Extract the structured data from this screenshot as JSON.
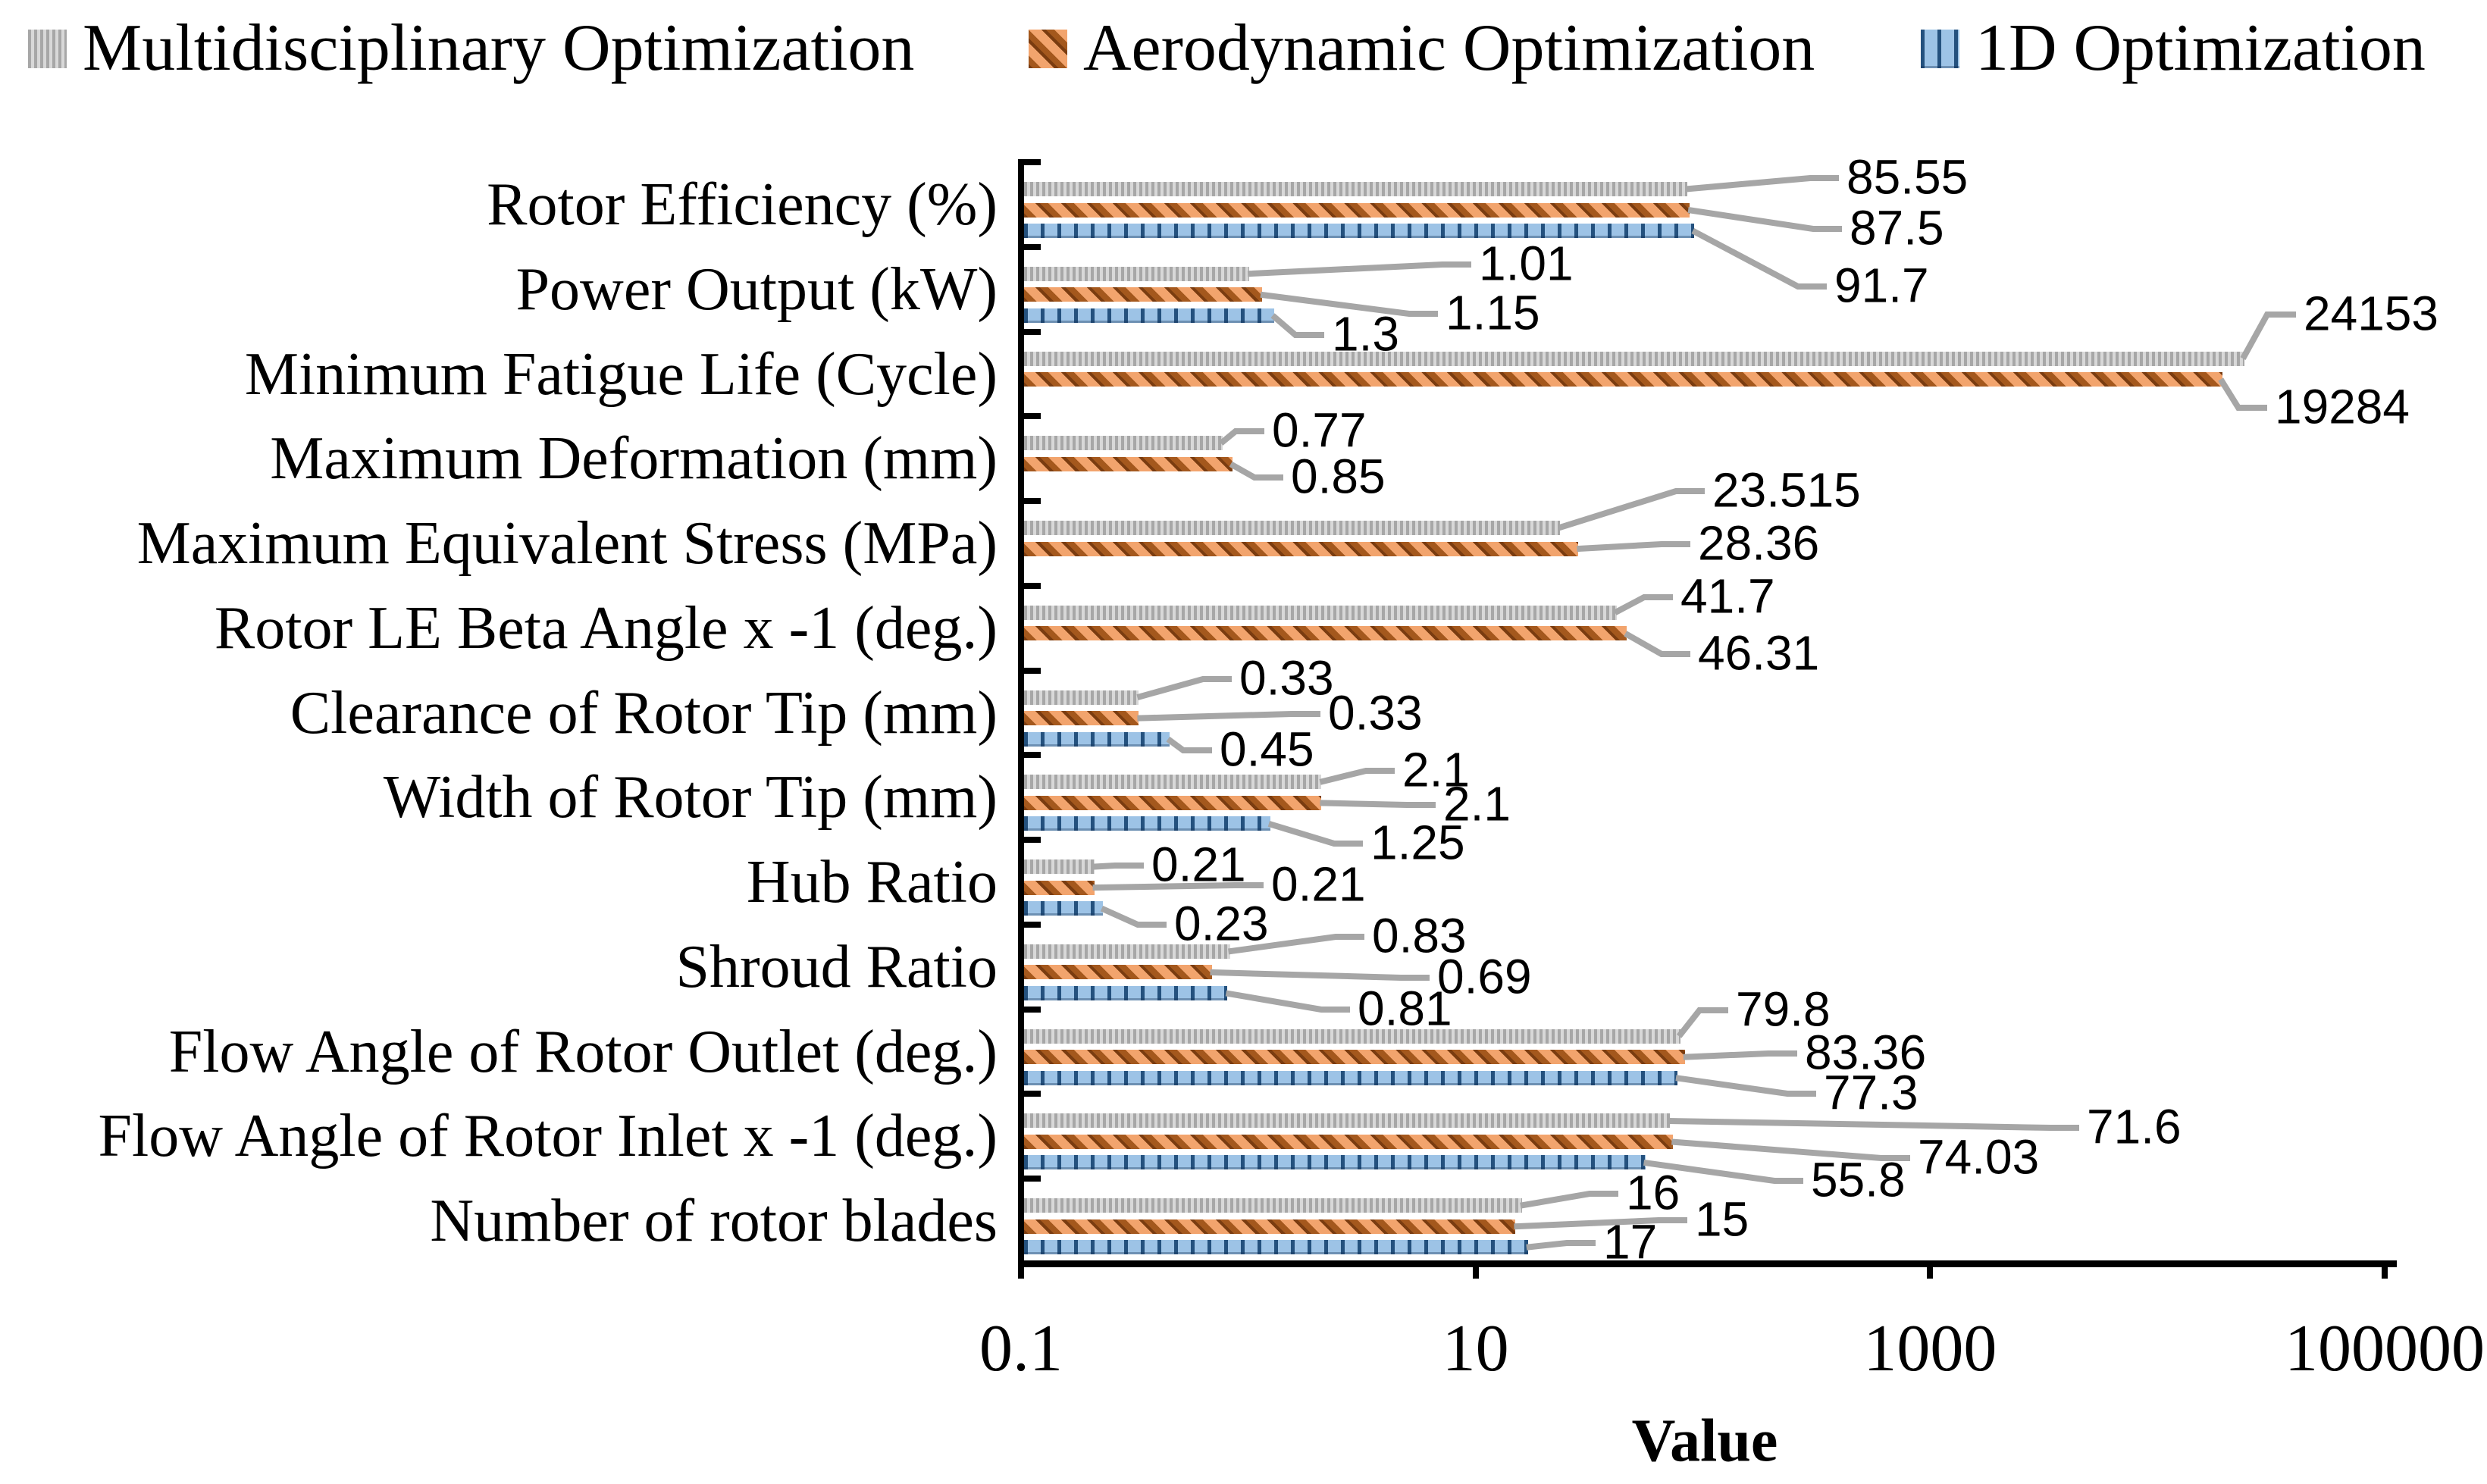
{
  "legend": {
    "items": [
      {
        "label": "Multidisciplinary Optimization"
      },
      {
        "label": "Aerodynamic Optimization"
      },
      {
        "label": "1D Optimization"
      }
    ]
  },
  "chart_data": {
    "type": "bar",
    "orientation": "horizontal",
    "x_scale": "log",
    "title": "",
    "xlabel": "Value",
    "xlim": [
      0.1,
      100000
    ],
    "x_ticks": [
      0.1,
      10,
      1000,
      100000
    ],
    "x_tick_labels": [
      "0.1",
      "10",
      "1000",
      "100000"
    ],
    "grid": false,
    "legend_position": "top",
    "categories": [
      "Rotor Efficiency (%)",
      "Power Output (kW)",
      "Minimum Fatigue Life (Cycle)",
      "Maximum Deformation (mm)",
      "Maximum Equivalent Stress (MPa)",
      "Rotor LE Beta Angle x -1 (deg.)",
      "Clearance of Rotor Tip (mm)",
      "Width of Rotor Tip (mm)",
      "Hub Ratio",
      "Shroud Ratio",
      "Flow Angle of Rotor Outlet (deg.)",
      "Flow Angle of Rotor Inlet x -1 (deg.)",
      "Number of rotor blades"
    ],
    "series": [
      {
        "name": "Multidisciplinary Optimization",
        "pattern": "vertical-stripes",
        "color_fill": "#d8d8d8",
        "color_stripe": "#a7a7a7",
        "values": [
          85.55,
          1.01,
          24153,
          0.77,
          23.515,
          41.7,
          0.33,
          2.1,
          0.21,
          0.83,
          79.8,
          71.6,
          16
        ]
      },
      {
        "name": "Aerodynamic Optimization",
        "pattern": "diagonal-dashes",
        "color_fill": "#f2a46d",
        "color_stripe": "#8c4a16",
        "values": [
          87.5,
          1.15,
          19284,
          0.85,
          28.36,
          46.31,
          0.33,
          2.1,
          0.21,
          0.69,
          83.36,
          74.03,
          15
        ]
      },
      {
        "name": "1D Optimization",
        "pattern": "vertical-ticks",
        "color_fill": "#9dc3e6",
        "color_stripe": "#24517e",
        "values": [
          91.7,
          1.3,
          null,
          null,
          null,
          null,
          0.45,
          1.25,
          0.23,
          0.81,
          77.3,
          55.8,
          17
        ]
      }
    ],
    "data_label_color": "#000000",
    "leader_line_color": "#a6a6a6",
    "axis_color": "#000000"
  }
}
